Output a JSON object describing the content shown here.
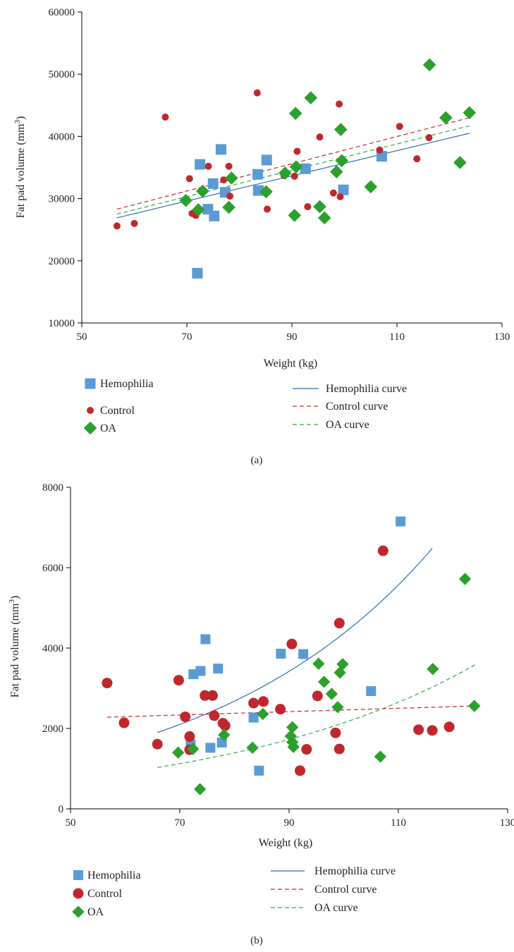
{
  "colors": {
    "hemophilia": "#5b9bd5",
    "control": "#c0272d",
    "oa": "#2ca02c",
    "hemophilia_curve": "#2e6fad",
    "control_curve": "#c0272d",
    "oa_curve": "#33a64a",
    "axis": "#000000"
  },
  "chart_data": [
    {
      "type": "scatter",
      "panel_label": "(a)",
      "xlabel": "Weight (kg)",
      "ylabel": "Fat pad volume (mm",
      "ylabel_sup": "3",
      "ylabel_end": ")",
      "xlim": [
        50,
        130
      ],
      "ylim": [
        10000,
        60000
      ],
      "xticks": [
        50,
        70,
        90,
        110,
        130
      ],
      "yticks": [
        10000,
        20000,
        30000,
        40000,
        50000,
        60000
      ],
      "grid": false,
      "legend_position": "bottom",
      "series": [
        {
          "name": "Hemophilia",
          "marker": "square",
          "color_key": "hemophilia",
          "points": [
            [
              72,
              18000
            ],
            [
              72.5,
              35500
            ],
            [
              74,
              28300
            ],
            [
              75,
              32400
            ],
            [
              75.2,
              27200
            ],
            [
              76.5,
              37900
            ],
            [
              77.3,
              31000
            ],
            [
              83.5,
              33900
            ],
            [
              83.6,
              31300
            ],
            [
              85.2,
              36200
            ],
            [
              92.6,
              34800
            ],
            [
              99.8,
              31400
            ],
            [
              107.1,
              36800
            ]
          ]
        },
        {
          "name": "Control",
          "marker": "circle",
          "color_key": "control",
          "points": [
            [
              56.7,
              25600
            ],
            [
              60,
              26000
            ],
            [
              65.9,
              43100
            ],
            [
              70.5,
              33200
            ],
            [
              71,
              27600
            ],
            [
              71.7,
              27300
            ],
            [
              74.1,
              35200
            ],
            [
              77,
              33000
            ],
            [
              78,
              35200
            ],
            [
              78.2,
              30400
            ],
            [
              83.4,
              47000
            ],
            [
              85.3,
              28300
            ],
            [
              88.5,
              33700
            ],
            [
              90.5,
              33600
            ],
            [
              91,
              37600
            ],
            [
              93,
              28700
            ],
            [
              95.3,
              39900
            ],
            [
              97.9,
              30900
            ],
            [
              99,
              45200
            ],
            [
              99.2,
              30300
            ],
            [
              106.7,
              37800
            ],
            [
              110.5,
              41600
            ],
            [
              113.8,
              36400
            ],
            [
              116.1,
              39800
            ]
          ]
        },
        {
          "name": "OA",
          "marker": "diamond",
          "color_key": "oa",
          "points": [
            [
              69.8,
              29700
            ],
            [
              72.2,
              28200
            ],
            [
              73,
              31200
            ],
            [
              78,
              28600
            ],
            [
              78.5,
              33300
            ],
            [
              85.1,
              31100
            ],
            [
              88.7,
              34100
            ],
            [
              90.5,
              27300
            ],
            [
              90.7,
              43700
            ],
            [
              90.8,
              35100
            ],
            [
              93.6,
              46200
            ],
            [
              95.3,
              28700
            ],
            [
              96.2,
              26900
            ],
            [
              98.5,
              34300
            ],
            [
              99.3,
              41100
            ],
            [
              99.5,
              36100
            ],
            [
              105,
              31900
            ],
            [
              116.2,
              51500
            ],
            [
              119.3,
              43000
            ],
            [
              122,
              35800
            ],
            [
              123.8,
              43800
            ]
          ]
        }
      ],
      "curves": [
        {
          "name": "Hemophilia curve",
          "style": "solid",
          "color_key": "hemophilia_curve",
          "x": [
            56.7,
            123.8
          ],
          "y": [
            26900,
            40500
          ]
        },
        {
          "name": "Control curve",
          "style": "dashed",
          "color_key": "control_curve",
          "x": [
            56.7,
            123.8
          ],
          "y": [
            28300,
            43000
          ]
        },
        {
          "name": "OA curve",
          "style": "dashed",
          "color_key": "oa_curve",
          "x": [
            56.7,
            123.8
          ],
          "y": [
            27500,
            41700
          ]
        }
      ]
    },
    {
      "type": "scatter",
      "panel_label": "(b)",
      "xlabel": "Weight (kg)",
      "ylabel": "Fat pad volume (mm",
      "ylabel_sup": "3",
      "ylabel_end": ")",
      "xlim": [
        50,
        130
      ],
      "ylim": [
        0,
        8000
      ],
      "xticks": [
        50,
        70,
        90,
        110,
        130
      ],
      "xtick_labels": [
        "50",
        "70",
        "90",
        "110",
        "130"
      ],
      "yticks": [
        0,
        2000,
        4000,
        6000,
        8000
      ],
      "grid": false,
      "legend_position": "bottom",
      "series": [
        {
          "name": "Hemophilia",
          "marker": "square",
          "color_key": "hemophilia",
          "points": [
            [
              72,
              1600
            ],
            [
              72.5,
              3350
            ],
            [
              73.8,
              3430
            ],
            [
              74.7,
              4220
            ],
            [
              75.6,
              1520
            ],
            [
              77,
              3490
            ],
            [
              77.7,
              1650
            ],
            [
              83.5,
              2270
            ],
            [
              84.5,
              950
            ],
            [
              88.5,
              3860
            ],
            [
              92.6,
              3850
            ],
            [
              105,
              2930
            ],
            [
              110.4,
              7150
            ]
          ]
        },
        {
          "name": "Control",
          "marker": "circle",
          "color_key": "control",
          "points": [
            [
              56.7,
              3130
            ],
            [
              59.8,
              2140
            ],
            [
              65.9,
              1610
            ],
            [
              69.8,
              3200
            ],
            [
              71,
              2290
            ],
            [
              71.8,
              1800
            ],
            [
              71.8,
              1470
            ],
            [
              74.6,
              2820
            ],
            [
              76,
              2820
            ],
            [
              76.3,
              2320
            ],
            [
              77.9,
              2130
            ],
            [
              78.3,
              2070
            ],
            [
              83.5,
              2630
            ],
            [
              85.3,
              2670
            ],
            [
              88.4,
              2480
            ],
            [
              90.5,
              4100
            ],
            [
              92,
              950
            ],
            [
              93.2,
              1480
            ],
            [
              95.2,
              2810
            ],
            [
              98.5,
              1890
            ],
            [
              99.2,
              4620
            ],
            [
              99.2,
              1490
            ],
            [
              107.2,
              6420
            ],
            [
              113.7,
              1970
            ],
            [
              116.2,
              1950
            ],
            [
              119.3,
              2040
            ]
          ]
        },
        {
          "name": "OA",
          "marker": "diamond",
          "color_key": "oa",
          "points": [
            [
              69.7,
              1400
            ],
            [
              72.4,
              1490
            ],
            [
              73.7,
              490
            ],
            [
              78.1,
              1840
            ],
            [
              83.3,
              1520
            ],
            [
              85.2,
              2360
            ],
            [
              90.3,
              1810
            ],
            [
              90.6,
              2030
            ],
            [
              90.6,
              1660
            ],
            [
              90.8,
              1540
            ],
            [
              95.4,
              3610
            ],
            [
              96.4,
              3160
            ],
            [
              97.8,
              2860
            ],
            [
              98.9,
              2530
            ],
            [
              99.3,
              3390
            ],
            [
              99.8,
              3600
            ],
            [
              106.7,
              1300
            ],
            [
              116.3,
              3480
            ],
            [
              122.2,
              5720
            ],
            [
              123.9,
              2560
            ]
          ]
        }
      ],
      "curves": [
        {
          "name": "Hemophilia curve",
          "style": "solid",
          "color_key": "hemophilia_curve",
          "type": "exp",
          "x0": 65.9,
          "x1": 116.2,
          "y0": 1900,
          "y1": 6480
        },
        {
          "name": "Control curve",
          "style": "dashed",
          "color_key": "control_curve",
          "type": "linear",
          "x0": 56.7,
          "x1": 124,
          "y0": 2280,
          "y1": 2560
        },
        {
          "name": "OA curve",
          "style": "dashed",
          "color_key": "oa_curve",
          "type": "exp",
          "x0": 65.9,
          "x1": 124,
          "y0": 1030,
          "y1": 3580
        }
      ]
    }
  ]
}
